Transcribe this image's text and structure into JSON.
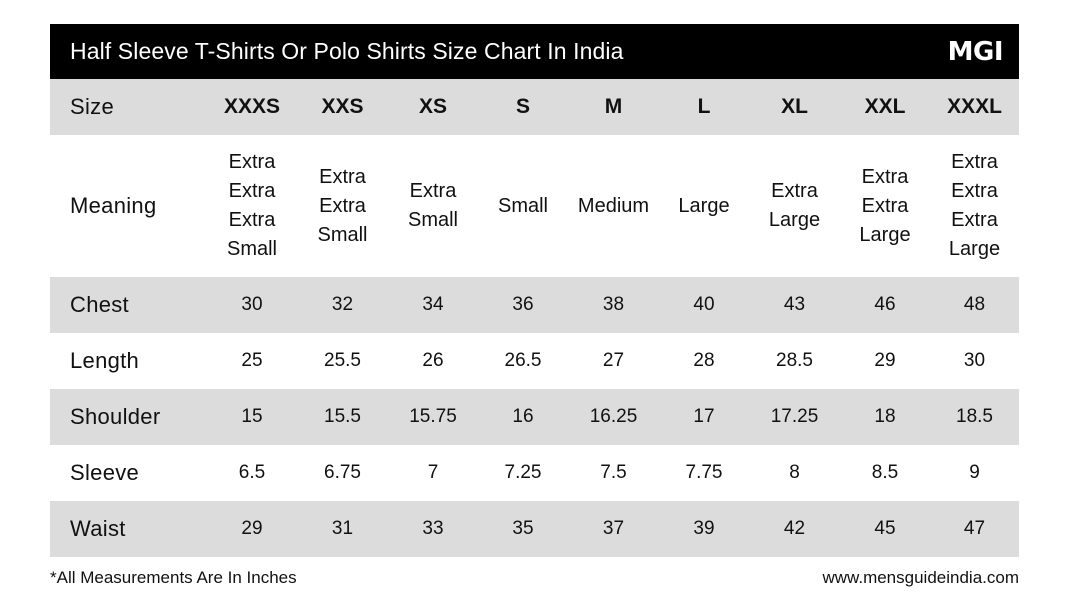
{
  "title": "Half Sleeve T-Shirts Or Polo Shirts Size Chart In India",
  "logo": "MGI",
  "header": {
    "label": "Size",
    "sizes": [
      "XXXS",
      "XXS",
      "XS",
      "S",
      "M",
      "L",
      "XL",
      "XXL",
      "XXXL"
    ]
  },
  "meaning": {
    "label": "Meaning",
    "values": [
      "Extra Extra Extra Small",
      "Extra Extra Small",
      "Extra Small",
      "Small",
      "Medium",
      "Large",
      "Extra Large",
      "Extra Extra Large",
      "Extra Extra Extra Large"
    ]
  },
  "rows": [
    {
      "label": "Chest",
      "values": [
        "30",
        "32",
        "34",
        "36",
        "38",
        "40",
        "43",
        "46",
        "48"
      ]
    },
    {
      "label": "Length",
      "values": [
        "25",
        "25.5",
        "26",
        "26.5",
        "27",
        "28",
        "28.5",
        "29",
        "30"
      ]
    },
    {
      "label": "Shoulder",
      "values": [
        "15",
        "15.5",
        "15.75",
        "16",
        "16.25",
        "17",
        "17.25",
        "18",
        "18.5"
      ]
    },
    {
      "label": "Sleeve",
      "values": [
        "6.5",
        "6.75",
        "7",
        "7.25",
        "7.5",
        "7.75",
        "8",
        "8.5",
        "9"
      ]
    },
    {
      "label": "Waist",
      "values": [
        "29",
        "31",
        "33",
        "35",
        "37",
        "39",
        "42",
        "45",
        "47"
      ]
    }
  ],
  "footer": {
    "note": "*All Measurements Are In Inches",
    "url": "www.mensguideindia.com"
  },
  "colors": {
    "title_background": "#000000",
    "title_text": "#ffffff",
    "shaded_row": "#dcdcdc"
  }
}
